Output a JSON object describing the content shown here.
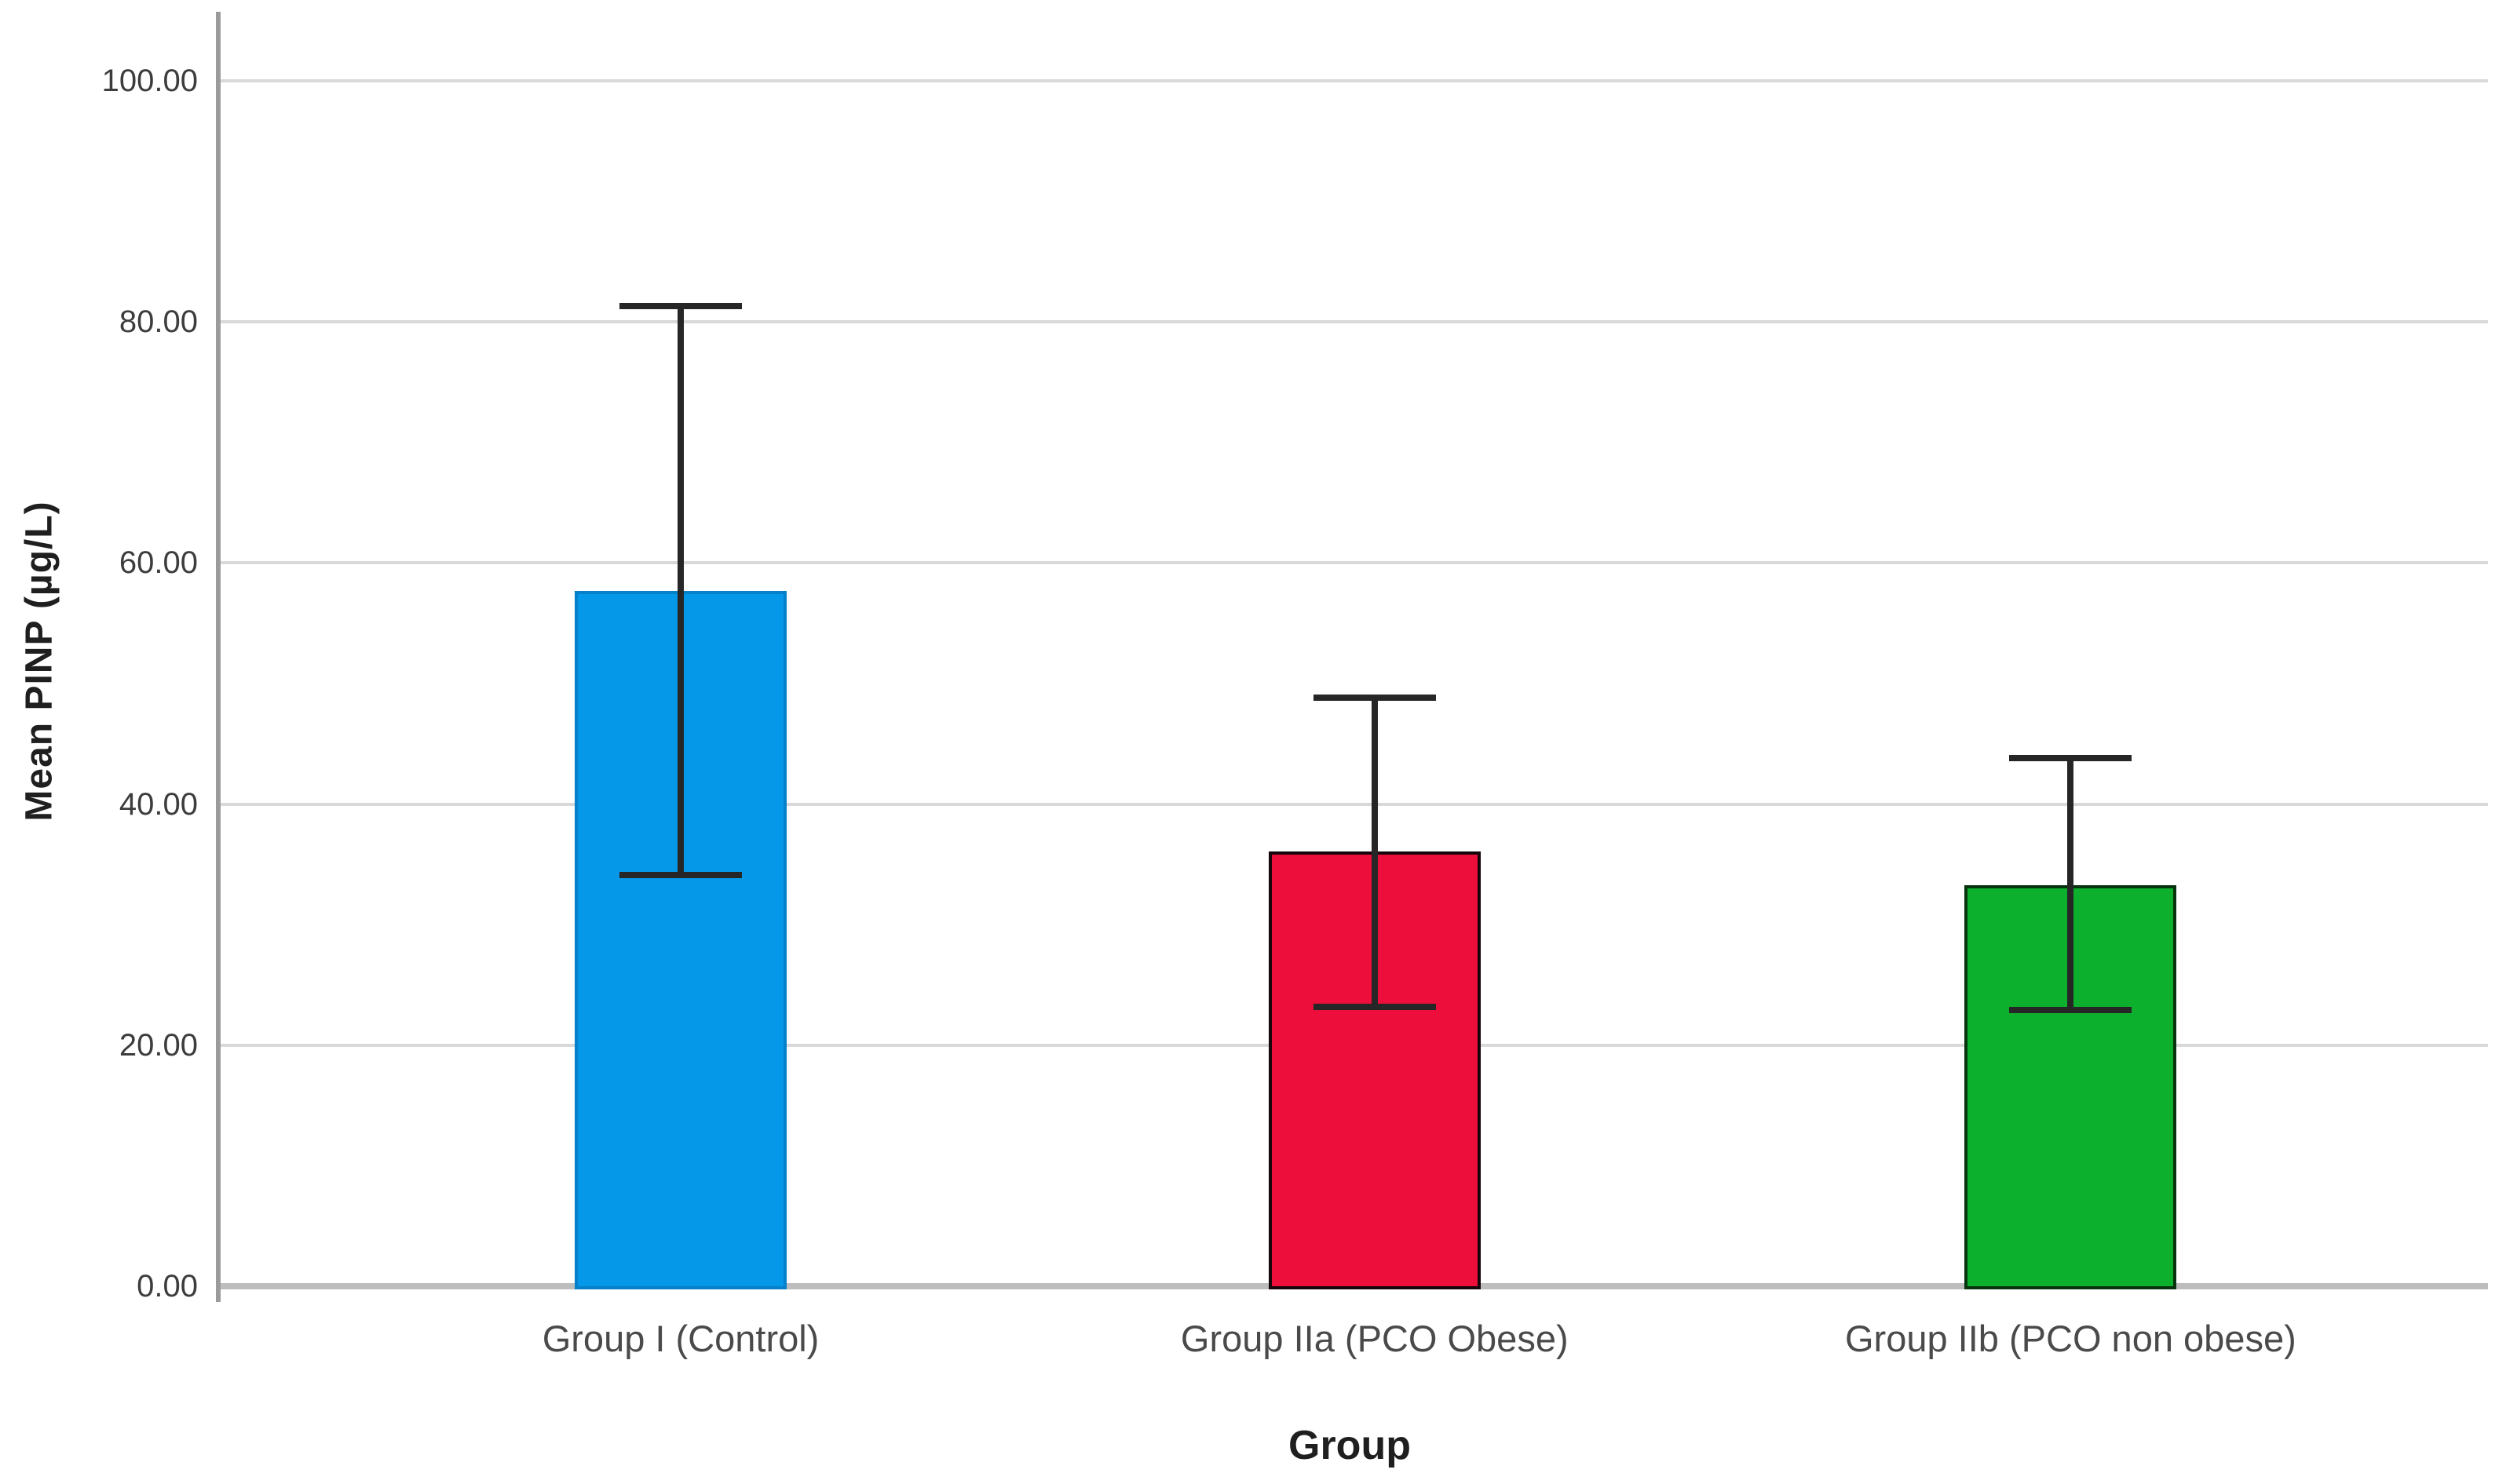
{
  "chart_data": {
    "type": "bar",
    "title": "",
    "xlabel": "Group",
    "ylabel": "Mean PINP (µg/L)",
    "ylim": [
      0,
      105
    ],
    "grid": "horizontal",
    "legend": "none",
    "y_ticks": [
      0,
      20,
      40,
      60,
      80,
      100
    ],
    "y_tick_labels": [
      "0.00",
      "20.00",
      "40.00",
      "60.00",
      "80.00",
      "100.00"
    ],
    "categories": [
      "Group I (Control)",
      "Group IIa (PCO Obese)",
      "Group IIb (PCO non obese)"
    ],
    "series": [
      {
        "name": "Mean PINP",
        "values": [
          57.7,
          36.1,
          33.3
        ],
        "error_upper": [
          81.3,
          48.8,
          43.8
        ],
        "error_lower": [
          34.1,
          23.2,
          22.9
        ],
        "bar_colors": [
          "#0597E8",
          "#ED0E3B",
          "#0CB02C"
        ],
        "bar_border_colors": [
          "#0481C9",
          "#16050b",
          "#07330e"
        ],
        "error_bar_color": "#262626"
      }
    ],
    "colors": {
      "gridline": "#d9d9d9",
      "baseline": "#bdbdbd",
      "y_axis_line": "#9b9b9b",
      "tick_text": "#3d3d3d",
      "category_text": "#4a4a4a",
      "title_text": "#1f1f1f",
      "background": "#ffffff"
    }
  }
}
